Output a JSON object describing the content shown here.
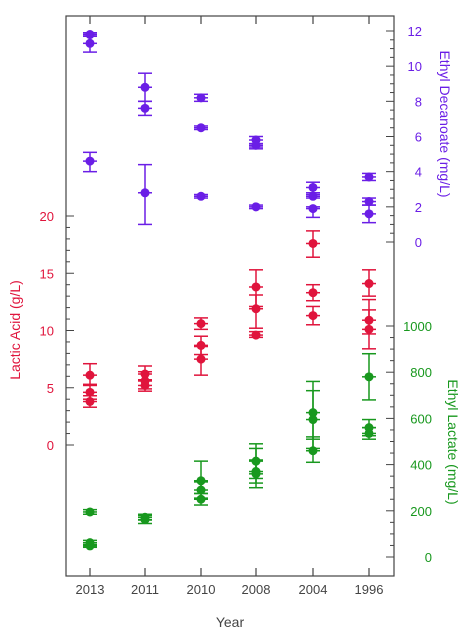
{
  "chart_data": {
    "type": "scatter",
    "xlabel": "Year",
    "categories": [
      "2013",
      "2011",
      "2010",
      "2008",
      "2004",
      "1996"
    ],
    "colors": {
      "lactic": "#e0143c",
      "decanoate": "#6a1ee6",
      "lactate": "#18981e",
      "axis": "#444444"
    },
    "axes": {
      "lactic": {
        "label": "Lactic Acid (g/L)",
        "ticks": [
          "20",
          "15",
          "10",
          "5",
          "0"
        ],
        "tick_values": [
          20,
          15,
          10,
          5,
          0
        ]
      },
      "decanoate": {
        "label": "Ethyl Decanoate (mg/L)",
        "ticks": [
          "12",
          "10",
          "8",
          "6",
          "4",
          "2",
          "0"
        ],
        "tick_values": [
          12,
          10,
          8,
          6,
          4,
          2,
          0
        ]
      },
      "lactate": {
        "label": "Ethyl Lactate (mg/L)",
        "ticks": [
          "1000",
          "800",
          "600",
          "400",
          "200",
          "0"
        ],
        "tick_values": [
          1000,
          800,
          600,
          400,
          200,
          0
        ]
      }
    },
    "series": [
      {
        "name": "Ethyl Decanoate",
        "axis": "decanoate",
        "points": [
          {
            "x": "2013",
            "y": 11.8,
            "lo": 11.7,
            "hi": 11.9
          },
          {
            "x": "2013",
            "y": 11.3,
            "lo": 10.8,
            "hi": 11.8
          },
          {
            "x": "2013",
            "y": 4.6,
            "lo": 4.0,
            "hi": 5.1
          },
          {
            "x": "2011",
            "y": 8.8,
            "lo": 8.0,
            "hi": 9.6
          },
          {
            "x": "2011",
            "y": 7.6,
            "lo": 7.2,
            "hi": 8.0
          },
          {
            "x": "2011",
            "y": 2.8,
            "lo": 1.0,
            "hi": 4.4
          },
          {
            "x": "2010",
            "y": 8.2,
            "lo": 8.0,
            "hi": 8.4
          },
          {
            "x": "2010",
            "y": 6.5,
            "lo": 6.4,
            "hi": 6.6
          },
          {
            "x": "2010",
            "y": 2.6,
            "lo": 2.5,
            "hi": 2.7
          },
          {
            "x": "2008",
            "y": 5.8,
            "lo": 5.3,
            "hi": 6.0
          },
          {
            "x": "2008",
            "y": 5.5,
            "lo": 5.4,
            "hi": 5.6
          },
          {
            "x": "2008",
            "y": 2.0,
            "lo": 1.9,
            "hi": 2.1
          },
          {
            "x": "2004",
            "y": 3.1,
            "lo": 2.8,
            "hi": 3.4
          },
          {
            "x": "2004",
            "y": 2.6,
            "lo": 2.5,
            "hi": 2.7
          },
          {
            "x": "2004",
            "y": 1.9,
            "lo": 1.4,
            "hi": 2.0
          },
          {
            "x": "1996",
            "y": 3.7,
            "lo": 3.5,
            "hi": 3.9
          },
          {
            "x": "1996",
            "y": 2.3,
            "lo": 2.1,
            "hi": 2.5
          },
          {
            "x": "1996",
            "y": 1.6,
            "lo": 1.1,
            "hi": 2.1
          }
        ]
      },
      {
        "name": "Lactic Acid",
        "axis": "lactic",
        "points": [
          {
            "x": "2013",
            "y": 6.1,
            "lo": 5.3,
            "hi": 7.1
          },
          {
            "x": "2013",
            "y": 4.6,
            "lo": 4.0,
            "hi": 5.2
          },
          {
            "x": "2013",
            "y": 3.8,
            "lo": 3.3,
            "hi": 4.3
          },
          {
            "x": "2011",
            "y": 6.2,
            "lo": 5.6,
            "hi": 6.9
          },
          {
            "x": "2011",
            "y": 5.6,
            "lo": 4.9,
            "hi": 6.4
          },
          {
            "x": "2011",
            "y": 5.2,
            "lo": 4.7,
            "hi": 5.7
          },
          {
            "x": "2010",
            "y": 10.6,
            "lo": 10.1,
            "hi": 11.1
          },
          {
            "x": "2010",
            "y": 8.7,
            "lo": 7.9,
            "hi": 9.5
          },
          {
            "x": "2010",
            "y": 7.5,
            "lo": 6.1,
            "hi": 8.6
          },
          {
            "x": "2008",
            "y": 13.8,
            "lo": 12.1,
            "hi": 15.3
          },
          {
            "x": "2008",
            "y": 11.9,
            "lo": 10.2,
            "hi": 13.1
          },
          {
            "x": "2008",
            "y": 9.6,
            "lo": 9.4,
            "hi": 9.9
          },
          {
            "x": "2004",
            "y": 17.6,
            "lo": 16.4,
            "hi": 18.7
          },
          {
            "x": "2004",
            "y": 13.3,
            "lo": 12.6,
            "hi": 14.0
          },
          {
            "x": "2004",
            "y": 11.3,
            "lo": 10.5,
            "hi": 12.1
          },
          {
            "x": "1996",
            "y": 14.1,
            "lo": 13.0,
            "hi": 15.3
          },
          {
            "x": "1996",
            "y": 10.9,
            "lo": 9.7,
            "hi": 12.7
          },
          {
            "x": "1996",
            "y": 10.1,
            "lo": 8.4,
            "hi": 11.8
          }
        ]
      },
      {
        "name": "Ethyl Lactate",
        "axis": "lactate",
        "points": [
          {
            "x": "2013",
            "y": 195,
            "lo": 185,
            "hi": 205
          },
          {
            "x": "2013",
            "y": 62,
            "lo": 52,
            "hi": 72
          },
          {
            "x": "2013",
            "y": 48,
            "lo": 42,
            "hi": 54
          },
          {
            "x": "2011",
            "y": 172,
            "lo": 160,
            "hi": 185
          },
          {
            "x": "2011",
            "y": 162,
            "lo": 145,
            "hi": 180
          },
          {
            "x": "2010",
            "y": 330,
            "lo": 275,
            "hi": 415
          },
          {
            "x": "2010",
            "y": 290,
            "lo": 255,
            "hi": 325
          },
          {
            "x": "2010",
            "y": 250,
            "lo": 225,
            "hi": 275
          },
          {
            "x": "2008",
            "y": 415,
            "lo": 340,
            "hi": 490
          },
          {
            "x": "2008",
            "y": 370,
            "lo": 320,
            "hi": 470
          },
          {
            "x": "2008",
            "y": 360,
            "lo": 300,
            "hi": 420
          },
          {
            "x": "2004",
            "y": 625,
            "lo": 510,
            "hi": 760
          },
          {
            "x": "2004",
            "y": 595,
            "lo": 470,
            "hi": 720
          },
          {
            "x": "2004",
            "y": 460,
            "lo": 410,
            "hi": 520
          },
          {
            "x": "1996",
            "y": 780,
            "lo": 680,
            "hi": 880
          },
          {
            "x": "1996",
            "y": 560,
            "lo": 525,
            "hi": 595
          },
          {
            "x": "1996",
            "y": 535,
            "lo": 510,
            "hi": 560
          }
        ]
      }
    ]
  }
}
